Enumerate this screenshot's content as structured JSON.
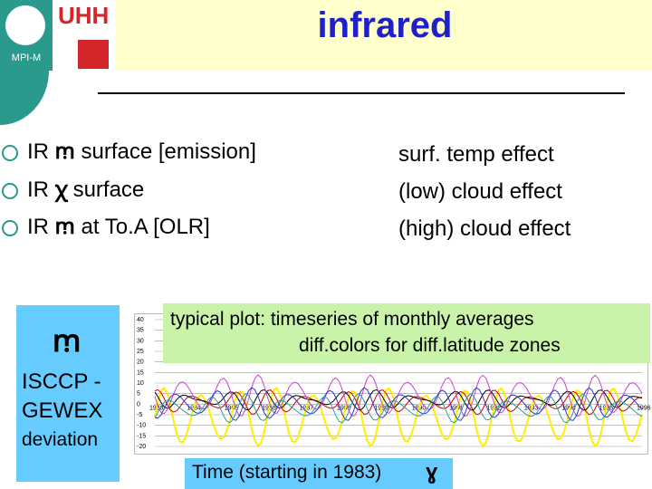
{
  "logos": {
    "mpi_label": "MPI-M",
    "uhh_text": "UHH"
  },
  "title": "infrared",
  "bullets": [
    {
      "prefix": "IR",
      "symbol": "ꭑ",
      "text": "surface [emission]"
    },
    {
      "prefix": "IR",
      "symbol": "ꭓ",
      "text": "surface"
    },
    {
      "prefix": "IR",
      "symbol": "ꭑ",
      "text": "at To.A [OLR]"
    }
  ],
  "effects": [
    "surf. temp effect",
    "(low) cloud effect",
    "(high) cloud effect"
  ],
  "isccp": {
    "line1": "ISCCP -",
    "line2": "GEWEX",
    "line3": "deviation",
    "icon": "wave-icon"
  },
  "caption": {
    "line1": "typical plot: timeseries of monthly averages",
    "line2": "diff.colors for diff.latitude zones"
  },
  "axis_caption": "Time (starting in 1983)",
  "chart_data": {
    "type": "line",
    "yticks": [
      40,
      35,
      30,
      25,
      20,
      15,
      10,
      5,
      0,
      -5,
      -10,
      -15,
      -20
    ],
    "ylim": [
      -20,
      40
    ],
    "year_labels": [
      "1983",
      "1984",
      "1985",
      "1986",
      "1987",
      "1988",
      "1989",
      "1990",
      "1991",
      "1992",
      "1993",
      "1994",
      "1995",
      "1996"
    ],
    "series_colors": [
      "#ffee00",
      "#d00000",
      "#000000",
      "#cc44cc",
      "#3333cc",
      "#2aa0a0"
    ]
  }
}
